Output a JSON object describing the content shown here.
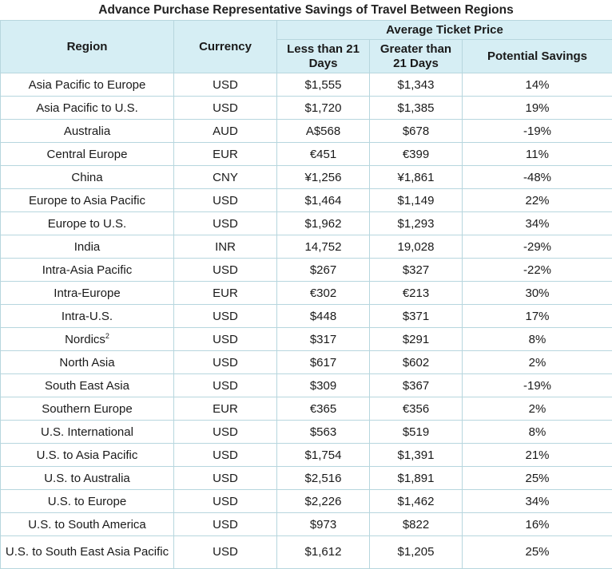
{
  "title": "Advance Purchase Representative Savings of Travel Between Regions",
  "headers": {
    "region": "Region",
    "currency": "Currency",
    "average_ticket_price": "Average Ticket Price",
    "less_than_21": "Less than 21 Days",
    "greater_than_21": "Greater than 21 Days",
    "potential_savings": "Potential Savings"
  },
  "rows": [
    {
      "region": "Asia Pacific to Europe",
      "currency": "USD",
      "less": "$1,555",
      "greater": "$1,343",
      "savings": "14%"
    },
    {
      "region": "Asia Pacific to U.S.",
      "currency": "USD",
      "less": "$1,720",
      "greater": "$1,385",
      "savings": "19%"
    },
    {
      "region": "Australia",
      "currency": "AUD",
      "less": "A$568",
      "greater": "$678",
      "savings": "-19%"
    },
    {
      "region": "Central Europe",
      "currency": "EUR",
      "less": "€451",
      "greater": "€399",
      "savings": "11%"
    },
    {
      "region": "China",
      "currency": "CNY",
      "less": "¥1,256",
      "greater": "¥1,861",
      "savings": "-48%"
    },
    {
      "region": "Europe to Asia Pacific",
      "currency": "USD",
      "less": "$1,464",
      "greater": "$1,149",
      "savings": "22%"
    },
    {
      "region": "Europe to U.S.",
      "currency": "USD",
      "less": "$1,962",
      "greater": "$1,293",
      "savings": "34%"
    },
    {
      "region": "India",
      "currency": "INR",
      "less": "14,752",
      "greater": "19,028",
      "savings": "-29%"
    },
    {
      "region": "Intra-Asia Pacific",
      "currency": "USD",
      "less": "$267",
      "greater": "$327",
      "savings": "-22%"
    },
    {
      "region": "Intra-Europe",
      "currency": "EUR",
      "less": "€302",
      "greater": "€213",
      "savings": "30%"
    },
    {
      "region": "Intra-U.S.",
      "currency": "USD",
      "less": "$448",
      "greater": "$371",
      "savings": "17%"
    },
    {
      "region": "Nordics",
      "region_sup": "2",
      "currency": "USD",
      "less": "$317",
      "greater": "$291",
      "savings": "8%"
    },
    {
      "region": "North Asia",
      "currency": "USD",
      "less": "$617",
      "greater": "$602",
      "savings": "2%"
    },
    {
      "region": "South East Asia",
      "currency": "USD",
      "less": "$309",
      "greater": "$367",
      "savings": "-19%"
    },
    {
      "region": "Southern Europe",
      "currency": "EUR",
      "less": "€365",
      "greater": "€356",
      "savings": "2%"
    },
    {
      "region": "U.S. International",
      "currency": "USD",
      "less": "$563",
      "greater": "$519",
      "savings": "8%"
    },
    {
      "region": "U.S. to Asia Pacific",
      "currency": "USD",
      "less": "$1,754",
      "greater": "$1,391",
      "savings": "21%"
    },
    {
      "region": "U.S. to Australia",
      "currency": "USD",
      "less": "$2,516",
      "greater": "$1,891",
      "savings": "25%"
    },
    {
      "region": "U.S. to Europe",
      "currency": "USD",
      "less": "$2,226",
      "greater": "$1,462",
      "savings": "34%"
    },
    {
      "region": "U.S. to South America",
      "currency": "USD",
      "less": "$973",
      "greater": "$822",
      "savings": "16%"
    },
    {
      "region": "U.S. to South East Asia Pacific",
      "currency": "USD",
      "less": "$1,612",
      "greater": "$1,205",
      "savings": "25%"
    }
  ],
  "colors": {
    "header_bg": "#d6eef4",
    "border": "#b7d6de"
  }
}
